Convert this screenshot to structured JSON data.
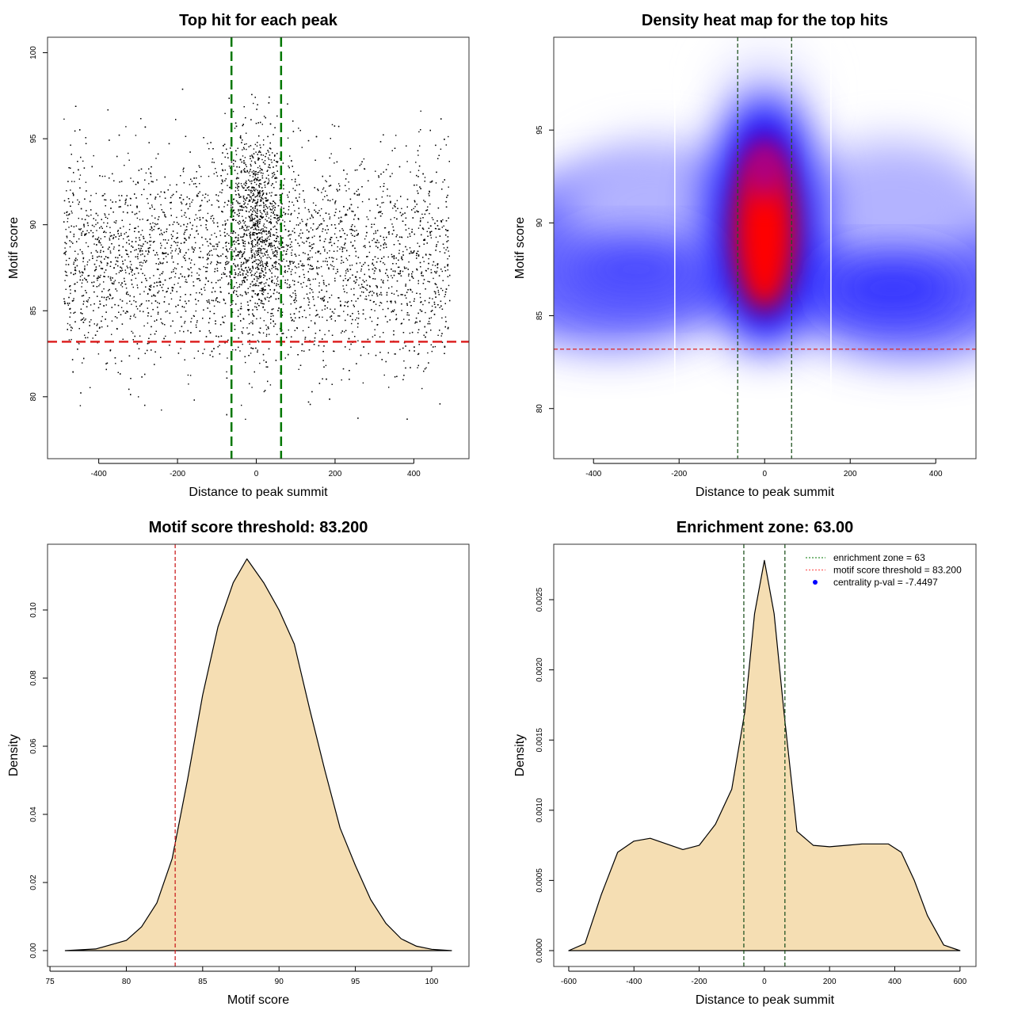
{
  "chart_data": [
    {
      "type": "scatter",
      "title": "Top hit for each peak",
      "xlabel": "Distance to peak summit",
      "ylabel": "Motif score",
      "xlim": [
        -530,
        540
      ],
      "ylim": [
        76.4,
        100.9
      ],
      "xticks": [
        -400,
        -200,
        0,
        200,
        400
      ],
      "yticks": [
        80,
        85,
        90,
        95,
        100
      ],
      "hlines": [
        {
          "y": 83.2,
          "color": "#dd2222",
          "style": "dashed"
        }
      ],
      "vlines": [
        {
          "x": -63,
          "color": "#007700",
          "style": "dashed"
        },
        {
          "x": 63,
          "color": "#007700",
          "style": "dashed"
        }
      ],
      "point_color": "#000000",
      "grid": false
    },
    {
      "type": "heatmap",
      "title": "Density heat map for the top hits",
      "xlabel": "Distance to peak summit",
      "ylabel": "Motif score",
      "xlim": [
        -493,
        494
      ],
      "ylim": [
        77.3,
        100
      ],
      "xticks": [
        -400,
        -200,
        0,
        200,
        400
      ],
      "yticks": [
        80,
        85,
        90,
        95
      ],
      "colors": [
        "#ffffff",
        "#0000ff",
        "#ff0000"
      ],
      "hlines": [
        {
          "y": 83.2,
          "color": "#dd2222",
          "style": "dashed"
        }
      ],
      "vlines": [
        {
          "x": -63,
          "color": "#225522",
          "style": "dashed"
        },
        {
          "x": 63,
          "color": "#225522",
          "style": "dashed"
        }
      ],
      "grid": false
    },
    {
      "type": "area",
      "title": "Motif score threshold: 83.200",
      "xlabel": "Motif score",
      "ylabel": "Density",
      "xlim": [
        74.84,
        102.44
      ],
      "ylim": [
        -0.00465,
        0.1193
      ],
      "xticks": [
        75,
        80,
        85,
        90,
        95,
        100
      ],
      "yticks": [
        "0.00",
        "0.02",
        "0.04",
        "0.06",
        "0.08",
        "0.10"
      ],
      "fill": "#f5deb3",
      "x": [
        76,
        78,
        80,
        81,
        82,
        83,
        84,
        85,
        86,
        87,
        87.9,
        89,
        90,
        91,
        92,
        93,
        94,
        95,
        96,
        97,
        98,
        99,
        100,
        101.3
      ],
      "y": [
        0,
        0.0005,
        0.003,
        0.007,
        0.014,
        0.027,
        0.05,
        0.075,
        0.095,
        0.108,
        0.115,
        0.108,
        0.1,
        0.09,
        0.071,
        0.053,
        0.036,
        0.025,
        0.015,
        0.008,
        0.0035,
        0.0013,
        0.0004,
        0
      ],
      "vlines": [
        {
          "x": 83.2,
          "color": "#cc2222",
          "style": "dashed"
        }
      ],
      "grid": false
    },
    {
      "type": "area",
      "title": "Enrichment zone: 63.00",
      "xlabel": "Distance to peak summit",
      "ylabel": "Density",
      "xlim": [
        -646,
        649
      ],
      "ylim": [
        -0.000113,
        0.002895
      ],
      "xticks": [
        -600,
        -400,
        -200,
        0,
        200,
        400,
        600
      ],
      "yticks": [
        "0.0000",
        "0.0005",
        "0.0010",
        "0.0015",
        "0.0020",
        "0.0025"
      ],
      "fill": "#f5deb3",
      "x": [
        -600,
        -550,
        -500,
        -450,
        -400,
        -350,
        -300,
        -250,
        -200,
        -150,
        -100,
        -60,
        -30,
        0,
        30,
        60,
        100,
        150,
        200,
        250,
        300,
        380,
        420,
        460,
        500,
        550,
        600
      ],
      "y": [
        0,
        5e-05,
        0.0004,
        0.0007,
        0.00078,
        0.0008,
        0.00076,
        0.00072,
        0.00075,
        0.0009,
        0.00115,
        0.0017,
        0.0024,
        0.00278,
        0.0024,
        0.0017,
        0.00085,
        0.00075,
        0.00074,
        0.00075,
        0.00076,
        0.00076,
        0.0007,
        0.0005,
        0.00025,
        4e-05,
        0
      ],
      "vlines": [
        {
          "x": -63,
          "color": "#225522",
          "style": "dashed"
        },
        {
          "x": 63,
          "color": "#225522",
          "style": "dashed"
        }
      ],
      "legend": {
        "position": "top-right",
        "entries": [
          {
            "label": "enrichment zone = 63",
            "color": "#007700",
            "marker": "dotted-line"
          },
          {
            "label": "motif score threshold = 83.200",
            "color": "#ff4444",
            "marker": "dotted-line"
          },
          {
            "label": "centrality p-val = -7.4497",
            "color": "#0000ff",
            "marker": "dot"
          }
        ]
      },
      "grid": false
    }
  ]
}
